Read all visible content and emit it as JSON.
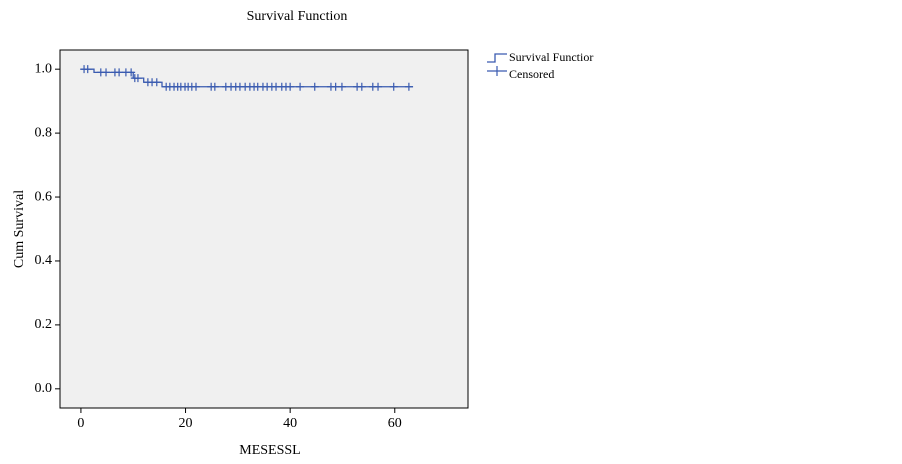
{
  "chart_data": {
    "type": "survival",
    "title": "Survival Function",
    "x_label": "MESESSL",
    "y_label": "Cum Survival",
    "xlim": [
      -4,
      74
    ],
    "ylim": [
      -0.06,
      1.06
    ],
    "xticks": [
      0,
      20,
      40,
      60
    ],
    "yticks": [
      {
        "value": 0,
        "label": "0.0"
      },
      0.2,
      0.4,
      0.6,
      0.8,
      {
        "value": 1,
        "label": "1.0"
      }
    ],
    "series": [
      {
        "name": "Survival Functior",
        "color": "#3a5bb0",
        "x": [
          0,
          2.5,
          10,
          12,
          15.5,
          63.5
        ],
        "values": [
          1.0,
          0.99,
          0.972,
          0.959,
          0.945,
          0.945
        ]
      },
      {
        "name": "Censored",
        "color": "#3a5bb0",
        "x": [
          0.6,
          1.3,
          3.8,
          4.8,
          6.5,
          7.3,
          8.6,
          9.6,
          10.3,
          10.9,
          12.8,
          13.6,
          14.5,
          16.3,
          17,
          17.8,
          18.5,
          19.1,
          19.9,
          20.5,
          21.2,
          22,
          24.9,
          25.6,
          27.7,
          28.7,
          29.6,
          30.4,
          31.4,
          32.3,
          33.1,
          33.8,
          34.8,
          35.6,
          36.5,
          37.3,
          38.4,
          39.2,
          40,
          41.9,
          44.7,
          47.8,
          48.7,
          49.9,
          52.8,
          53.7,
          55.8,
          56.8,
          59.8,
          62.7
        ],
        "values": [
          1.0,
          1.0,
          0.99,
          0.99,
          0.99,
          0.99,
          0.99,
          0.99,
          0.972,
          0.972,
          0.959,
          0.959,
          0.959,
          0.945,
          0.945,
          0.945,
          0.945,
          0.945,
          0.945,
          0.945,
          0.945,
          0.945,
          0.945,
          0.945,
          0.945,
          0.945,
          0.945,
          0.945,
          0.945,
          0.945,
          0.945,
          0.945,
          0.945,
          0.945,
          0.945,
          0.945,
          0.945,
          0.945,
          0.945,
          0.945,
          0.945,
          0.945,
          0.945,
          0.945,
          0.945,
          0.945,
          0.945,
          0.945,
          0.945,
          0.945
        ]
      }
    ]
  }
}
